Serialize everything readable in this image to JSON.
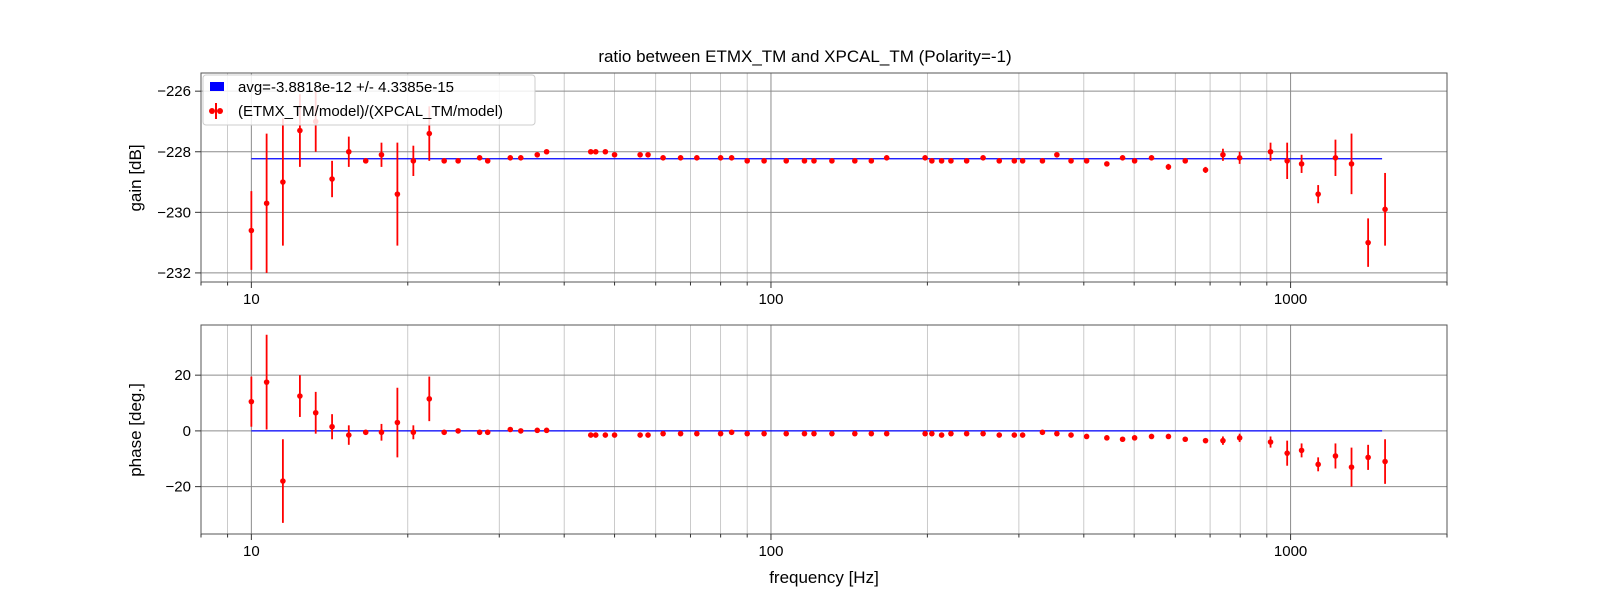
{
  "chart_data": [
    {
      "type": "scatter",
      "title": "ratio between ETMX_TM and XPCAL_TM (Polarity=-1)",
      "xlabel": "",
      "ylabel": "gain [dB]",
      "xscale": "log",
      "xlim": [
        8,
        2000
      ],
      "ylim": [
        -232.3,
        -225.4
      ],
      "xticks": [
        10,
        100,
        1000
      ],
      "xtick_labels": [
        "10",
        "100",
        "1000"
      ],
      "yticks": [
        -232,
        -230,
        -228,
        -226
      ],
      "ytick_labels": [
        "−232",
        "−230",
        "−228",
        "−226"
      ],
      "grid": true,
      "legend_position": "top-left",
      "series": [
        {
          "name": "avg=-3.8818e-12 +/- 4.3385e-15",
          "kind": "line",
          "color": "#0000ff",
          "x": [
            10,
            1500
          ],
          "y": [
            -228.23,
            -228.23
          ]
        },
        {
          "name": "(ETMX_TM/model)/(XPCAL_TM/model)",
          "kind": "errorbar",
          "color": "#ff0000",
          "x": [
            10,
            10.7,
            11.5,
            12.4,
            13.3,
            14.3,
            15.4,
            16.6,
            17.8,
            19.1,
            20.5,
            22,
            23.5,
            25,
            27.5,
            28.5,
            31.5,
            33,
            35.5,
            37,
            45,
            46,
            48,
            50,
            56,
            58,
            62,
            67,
            72,
            80,
            84,
            90,
            97,
            107,
            116,
            121,
            131,
            145,
            156,
            167,
            198,
            204,
            213,
            222,
            238,
            256,
            275,
            294,
            305,
            333,
            355,
            378,
            405,
            443,
            475,
            501,
            540,
            582,
            627,
            686,
            741,
            798,
            915,
            985,
            1050,
            1130,
            1220,
            1310,
            1410,
            1520
          ],
          "y": [
            -230.6,
            -229.7,
            -229.0,
            -227.3,
            -227.0,
            -228.9,
            -228.0,
            -228.3,
            -228.1,
            -229.4,
            -228.3,
            -227.4,
            -228.3,
            -228.3,
            -228.2,
            -228.3,
            -228.2,
            -228.2,
            -228.1,
            -228.0,
            -228.0,
            -228.0,
            -228.0,
            -228.1,
            -228.1,
            -228.1,
            -228.2,
            -228.2,
            -228.2,
            -228.2,
            -228.2,
            -228.3,
            -228.3,
            -228.3,
            -228.3,
            -228.3,
            -228.3,
            -228.3,
            -228.3,
            -228.2,
            -228.2,
            -228.3,
            -228.3,
            -228.3,
            -228.3,
            -228.2,
            -228.3,
            -228.3,
            -228.3,
            -228.3,
            -228.1,
            -228.3,
            -228.3,
            -228.4,
            -228.2,
            -228.3,
            -228.2,
            -228.5,
            -228.3,
            -228.6,
            -228.1,
            -228.2,
            -228.0,
            -228.3,
            -228.4,
            -229.4,
            -228.2,
            -228.4,
            -231.0,
            -229.9
          ],
          "yerr": [
            1.3,
            2.3,
            2.1,
            1.2,
            1.0,
            0.6,
            0.5,
            0.0,
            0.4,
            1.7,
            0.5,
            0.9,
            0.0,
            0.0,
            0.0,
            0.0,
            0.0,
            0.0,
            0.0,
            0.0,
            0.0,
            0.0,
            0.0,
            0.0,
            0.0,
            0.0,
            0.0,
            0.0,
            0.0,
            0.0,
            0.0,
            0.0,
            0.0,
            0.0,
            0.0,
            0.0,
            0.0,
            0.0,
            0.0,
            0.0,
            0.0,
            0.0,
            0.0,
            0.0,
            0.0,
            0.0,
            0.0,
            0.0,
            0.0,
            0.0,
            0.0,
            0.0,
            0.0,
            0.0,
            0.0,
            0.0,
            0.0,
            0.1,
            0.0,
            0.1,
            0.2,
            0.2,
            0.3,
            0.6,
            0.3,
            0.3,
            0.6,
            1.0,
            0.8,
            1.2
          ]
        }
      ]
    },
    {
      "type": "scatter",
      "title": "",
      "xlabel": "frequency [Hz]",
      "ylabel": "phase [deg.]",
      "xscale": "log",
      "xlim": [
        8,
        2000
      ],
      "ylim": [
        -37,
        38
      ],
      "xticks": [
        10,
        100,
        1000
      ],
      "xtick_labels": [
        "10",
        "100",
        "1000"
      ],
      "yticks": [
        -20,
        0,
        20
      ],
      "ytick_labels": [
        "−20",
        "0",
        "20"
      ],
      "grid": true,
      "series": [
        {
          "name": "",
          "kind": "line",
          "color": "#0000ff",
          "x": [
            10,
            1500
          ],
          "y": [
            0,
            0
          ]
        },
        {
          "name": "",
          "kind": "errorbar",
          "color": "#ff0000",
          "x": [
            10,
            10.7,
            11.5,
            12.4,
            13.3,
            14.3,
            15.4,
            16.6,
            17.8,
            19.1,
            20.5,
            22,
            23.5,
            25,
            27.5,
            28.5,
            31.5,
            33,
            35.5,
            37,
            45,
            46,
            48,
            50,
            56,
            58,
            62,
            67,
            72,
            80,
            84,
            90,
            97,
            107,
            116,
            121,
            131,
            145,
            156,
            167,
            198,
            204,
            213,
            222,
            238,
            256,
            275,
            294,
            305,
            333,
            355,
            378,
            405,
            443,
            475,
            501,
            540,
            582,
            627,
            686,
            741,
            798,
            915,
            985,
            1050,
            1130,
            1220,
            1310,
            1410,
            1520
          ],
          "y": [
            10.5,
            17.5,
            -18,
            12.5,
            6.5,
            1.5,
            -1.5,
            -0.5,
            -0.5,
            3,
            -0.5,
            11.5,
            -0.5,
            0,
            -0.5,
            -0.5,
            0.5,
            0,
            0.2,
            0.2,
            -1.5,
            -1.5,
            -1.5,
            -1.5,
            -1.5,
            -1.5,
            -1,
            -1,
            -1,
            -1,
            -0.5,
            -1,
            -1,
            -1,
            -1,
            -1,
            -1,
            -1,
            -1,
            -1,
            -1,
            -1,
            -1.5,
            -1,
            -1,
            -1,
            -1.5,
            -1.5,
            -1.5,
            -0.5,
            -1,
            -1.5,
            -2,
            -2.5,
            -3,
            -2.5,
            -2,
            -2,
            -3,
            -3.5,
            -3.5,
            -2.5,
            -4,
            -8,
            -7,
            -12,
            -9,
            -13,
            -9.5,
            -11
          ],
          "yerr": [
            9,
            17,
            15,
            7.5,
            7.5,
            4.5,
            3.5,
            0,
            3,
            12.5,
            2.5,
            8,
            0,
            0,
            0,
            0,
            0,
            0,
            0,
            0,
            0,
            0,
            0,
            0,
            0,
            0,
            0,
            0,
            0,
            0,
            0,
            0,
            0,
            0,
            0,
            0,
            0,
            0,
            0,
            0,
            0,
            0,
            0,
            0,
            0,
            0,
            0,
            0,
            0,
            0,
            0,
            0,
            0,
            0,
            0,
            0,
            0,
            0,
            0,
            0,
            1.5,
            1.5,
            2,
            4.5,
            2.5,
            2.5,
            4.5,
            7,
            4.5,
            8
          ]
        }
      ]
    }
  ]
}
